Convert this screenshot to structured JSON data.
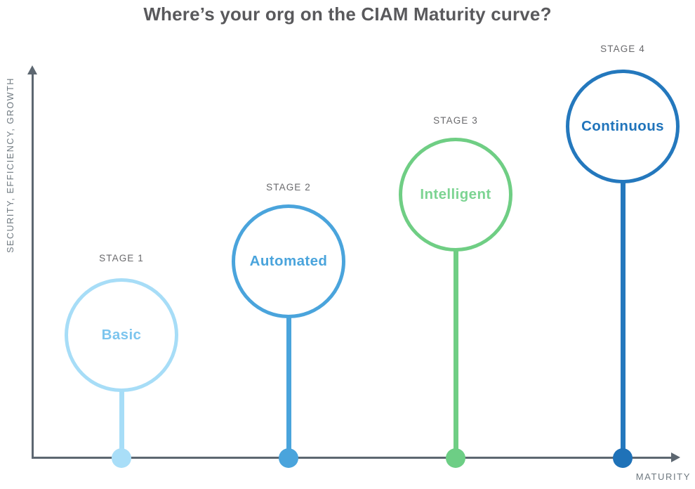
{
  "chart_data": {
    "type": "scatter",
    "variant": "lollipop-maturity-stages",
    "title": "Where’s your org on the CIAM Maturity curve?",
    "xlabel": "MATURITY",
    "ylabel": "SECURITY, EFFICIENCY, GROWTH",
    "x": [
      1,
      2,
      3,
      4
    ],
    "y_relative": [
      0.32,
      0.51,
      0.68,
      0.86
    ],
    "axis_ticks": "none",
    "grid": "off",
    "legend": "none",
    "axis_color": "#5D6771",
    "title_color": "#59595C",
    "stages": [
      {
        "stage_label": "STAGE 1",
        "name": "Basic",
        "stroke_color": "#A7DDF7",
        "text_color": "#7CC5EE",
        "dot_color": "#A9DEF8"
      },
      {
        "stage_label": "STAGE 2",
        "name": "Automated",
        "stroke_color": "#4AA4DC",
        "text_color": "#4AA4DC",
        "dot_color": "#4AA4DC"
      },
      {
        "stage_label": "STAGE 3",
        "name": "Intelligent",
        "stroke_color": "#6FCE84",
        "text_color": "#7CD492",
        "dot_color": "#6DCE85"
      },
      {
        "stage_label": "STAGE 4",
        "name": "Continuous",
        "stroke_color": "#2478BD",
        "text_color": "#2074BB",
        "dot_color": "#1F72B8"
      }
    ]
  }
}
